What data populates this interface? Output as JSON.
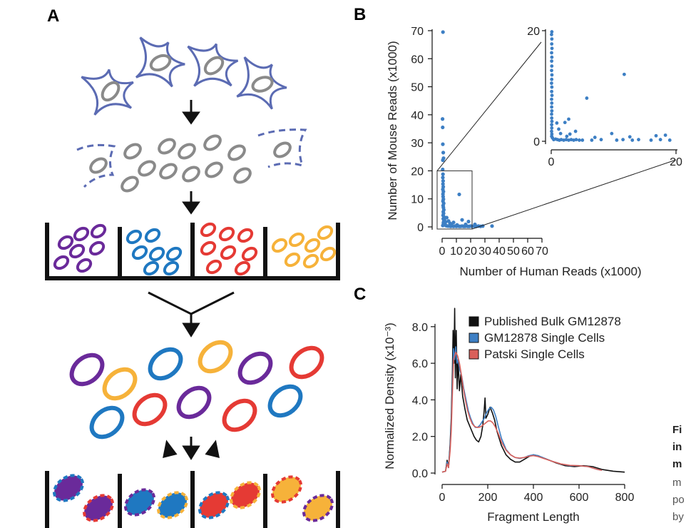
{
  "panels": {
    "a": {
      "label": "A",
      "well_colors": [
        "#6a2a9a",
        "#1f78c1",
        "#e53a34",
        "#f6b23a"
      ]
    },
    "b": {
      "label": "B"
    },
    "c": {
      "label": "C"
    }
  },
  "caption_fragments": [
    "Fi",
    "in",
    "m",
    "m",
    "po",
    "by"
  ],
  "colors": {
    "cell_outline": "#5b6bb3",
    "nucleus": "#8a8a8a",
    "point": "#3d7fc4",
    "bulk": "#111111",
    "gm12878": "#3d7fc4",
    "patski": "#d9605a"
  },
  "chart_data": [
    {
      "type": "scatter",
      "id": "panel-b-main",
      "xlabel": "Number of Human Reads (x1000)",
      "ylabel": "Number of Mouse Reads  (x1000)",
      "xlim": [
        0,
        70
      ],
      "ylim": [
        0,
        70
      ],
      "xticks": [
        0,
        10,
        20,
        30,
        40,
        50,
        60,
        70
      ],
      "yticks": [
        0,
        10,
        20,
        30,
        40,
        50,
        60,
        70
      ],
      "points": [
        [
          0.6,
          69.5
        ],
        [
          0.3,
          38.5
        ],
        [
          0.4,
          35.5
        ],
        [
          0.5,
          29.5
        ],
        [
          0.8,
          26.5
        ],
        [
          1.0,
          24.5
        ],
        [
          0.5,
          23.8
        ],
        [
          0.4,
          20.5
        ],
        [
          0.6,
          18.8
        ],
        [
          0.5,
          17.6
        ],
        [
          0.7,
          16.4
        ],
        [
          0.6,
          15.3
        ],
        [
          0.8,
          14.3
        ],
        [
          0.5,
          13.4
        ],
        [
          0.9,
          12.6
        ],
        [
          0.6,
          11.7
        ],
        [
          0.7,
          10.8
        ],
        [
          0.9,
          9.9
        ],
        [
          0.6,
          9.2
        ],
        [
          1.1,
          8.4
        ],
        [
          0.7,
          7.6
        ],
        [
          0.9,
          6.9
        ],
        [
          1.2,
          6.1
        ],
        [
          0.8,
          5.4
        ],
        [
          1.0,
          4.8
        ],
        [
          0.7,
          4.1
        ],
        [
          1.4,
          3.5
        ],
        [
          0.8,
          2.9
        ],
        [
          1.6,
          2.4
        ],
        [
          1.1,
          1.9
        ],
        [
          0.9,
          1.4
        ],
        [
          2.0,
          1.0
        ],
        [
          1.3,
          0.8
        ],
        [
          2.4,
          0.6
        ],
        [
          0.5,
          0.5
        ],
        [
          3.0,
          0.4
        ],
        [
          4.0,
          0.3
        ],
        [
          5.0,
          0.3
        ],
        [
          6.0,
          0.2
        ],
        [
          7.0,
          0.3
        ],
        [
          8.0,
          0.2
        ],
        [
          9.0,
          0.3
        ],
        [
          10.0,
          0.2
        ],
        [
          11.0,
          0.3
        ],
        [
          12.0,
          0.2
        ],
        [
          13.0,
          0.2
        ],
        [
          14.0,
          0.3
        ],
        [
          15.0,
          0.2
        ],
        [
          16.0,
          0.2
        ],
        [
          17.0,
          0.3
        ],
        [
          18.0,
          0.2
        ],
        [
          19.0,
          0.2
        ],
        [
          20.0,
          0.3
        ],
        [
          21.0,
          0.2
        ],
        [
          22.5,
          0.3
        ],
        [
          24.0,
          0.2
        ],
        [
          25.5,
          0.3
        ],
        [
          27.0,
          0.2
        ],
        [
          28.5,
          0.3
        ],
        [
          35.0,
          0.3
        ],
        [
          3.2,
          3.3
        ],
        [
          5.5,
          1.3
        ],
        [
          8.0,
          1.6
        ],
        [
          12.0,
          11.6
        ],
        [
          14.0,
          2.5
        ],
        [
          16.5,
          0.9
        ],
        [
          18.5,
          1.9
        ],
        [
          23.0,
          0.9
        ],
        [
          2.5,
          1.8
        ],
        [
          6.5,
          0.8
        ],
        [
          10.5,
          0.7
        ],
        [
          4.5,
          2.1
        ]
      ]
    },
    {
      "type": "scatter",
      "id": "panel-b-inset",
      "xlim": [
        0,
        20
      ],
      "ylim": [
        0,
        20
      ],
      "xticks": [
        0,
        20
      ],
      "yticks": [
        0,
        20
      ],
      "points": [
        [
          0.1,
          19.8
        ],
        [
          0.05,
          19.3
        ],
        [
          0.1,
          18.5
        ],
        [
          0.08,
          17.6
        ],
        [
          0.12,
          16.8
        ],
        [
          0.06,
          16.0
        ],
        [
          0.1,
          15.2
        ],
        [
          0.07,
          14.5
        ],
        [
          0.09,
          13.6
        ],
        [
          0.06,
          12.8
        ],
        [
          0.11,
          12.0
        ],
        [
          0.08,
          11.2
        ],
        [
          0.05,
          10.5
        ],
        [
          0.1,
          9.8
        ],
        [
          0.07,
          9.0
        ],
        [
          0.12,
          8.3
        ],
        [
          0.06,
          7.6
        ],
        [
          0.09,
          6.9
        ],
        [
          0.07,
          6.2
        ],
        [
          0.1,
          5.5
        ],
        [
          0.06,
          4.9
        ],
        [
          0.08,
          4.2
        ],
        [
          0.11,
          3.6
        ],
        [
          0.07,
          3.0
        ],
        [
          0.09,
          2.4
        ],
        [
          0.06,
          1.8
        ],
        [
          0.1,
          1.3
        ],
        [
          0.07,
          0.9
        ],
        [
          0.2,
          0.6
        ],
        [
          0.4,
          0.3
        ],
        [
          0.7,
          0.4
        ],
        [
          1.0,
          0.3
        ],
        [
          1.3,
          0.2
        ],
        [
          1.6,
          0.3
        ],
        [
          2.0,
          0.2
        ],
        [
          2.4,
          0.3
        ],
        [
          2.8,
          0.2
        ],
        [
          3.2,
          0.3
        ],
        [
          3.6,
          0.2
        ],
        [
          4.0,
          0.3
        ],
        [
          4.5,
          0.2
        ],
        [
          5.0,
          0.2
        ],
        [
          6.5,
          0.2
        ],
        [
          8.0,
          0.3
        ],
        [
          10.5,
          0.2
        ],
        [
          11.5,
          0.3
        ],
        [
          13.0,
          0.2
        ],
        [
          14.0,
          0.3
        ],
        [
          16.0,
          0.2
        ],
        [
          17.5,
          0.3
        ],
        [
          19.0,
          0.2
        ],
        [
          0.9,
          3.3
        ],
        [
          1.5,
          1.4
        ],
        [
          2.2,
          3.4
        ],
        [
          3.0,
          1.3
        ],
        [
          3.9,
          1.8
        ],
        [
          5.7,
          7.8
        ],
        [
          2.8,
          4.0
        ],
        [
          11.7,
          12.1
        ],
        [
          1.2,
          2.2
        ],
        [
          2.5,
          0.9
        ],
        [
          9.7,
          1.4
        ],
        [
          12.6,
          0.8
        ],
        [
          16.8,
          1.0
        ],
        [
          18.3,
          1.1
        ],
        [
          7.0,
          0.7
        ]
      ]
    },
    {
      "type": "line",
      "id": "panel-c",
      "xlabel": "Fragment Length",
      "ylabel": "Normalized Density (x10⁻³)",
      "xlim": [
        0,
        800
      ],
      "ylim": [
        0,
        8.5
      ],
      "xticks": [
        0,
        200,
        400,
        600,
        800
      ],
      "yticks": [
        "0.0",
        "2.0",
        "4.0",
        "6.0",
        "8.0"
      ],
      "legend_position": "top-right",
      "series": [
        {
          "name": "Published Bulk GM12878",
          "color": "#111111",
          "points": [
            [
              0,
              0.05
            ],
            [
              15,
              0.1
            ],
            [
              22,
              0.7
            ],
            [
              28,
              0.3
            ],
            [
              35,
              1.6
            ],
            [
              40,
              3.0
            ],
            [
              45,
              5.5
            ],
            [
              48,
              7.8
            ],
            [
              52,
              6.0
            ],
            [
              55,
              9.0
            ],
            [
              58,
              5.2
            ],
            [
              62,
              7.8
            ],
            [
              66,
              4.6
            ],
            [
              70,
              6.2
            ],
            [
              76,
              4.5
            ],
            [
              82,
              5.4
            ],
            [
              90,
              4.2
            ],
            [
              100,
              3.5
            ],
            [
              110,
              2.9
            ],
            [
              120,
              2.6
            ],
            [
              130,
              2.3
            ],
            [
              140,
              2.0
            ],
            [
              150,
              1.8
            ],
            [
              160,
              1.7
            ],
            [
              170,
              2.0
            ],
            [
              178,
              2.6
            ],
            [
              184,
              3.4
            ],
            [
              188,
              4.1
            ],
            [
              192,
              3.0
            ],
            [
              200,
              3.2
            ],
            [
              210,
              3.6
            ],
            [
              220,
              3.3
            ],
            [
              230,
              2.9
            ],
            [
              240,
              2.3
            ],
            [
              260,
              1.5
            ],
            [
              280,
              1.0
            ],
            [
              300,
              0.75
            ],
            [
              320,
              0.6
            ],
            [
              340,
              0.6
            ],
            [
              360,
              0.75
            ],
            [
              380,
              0.9
            ],
            [
              400,
              1.0
            ],
            [
              420,
              0.95
            ],
            [
              440,
              0.85
            ],
            [
              460,
              0.75
            ],
            [
              500,
              0.55
            ],
            [
              540,
              0.4
            ],
            [
              580,
              0.35
            ],
            [
              620,
              0.4
            ],
            [
              660,
              0.35
            ],
            [
              700,
              0.2
            ],
            [
              750,
              0.1
            ],
            [
              800,
              0.05
            ]
          ]
        },
        {
          "name": "GM12878 Single Cells",
          "color": "#3d7fc4",
          "points": [
            [
              0,
              0.05
            ],
            [
              15,
              0.1
            ],
            [
              22,
              0.6
            ],
            [
              28,
              0.3
            ],
            [
              35,
              1.4
            ],
            [
              40,
              2.6
            ],
            [
              45,
              4.8
            ],
            [
              50,
              6.8
            ],
            [
              55,
              6.2
            ],
            [
              60,
              6.9
            ],
            [
              65,
              6.0
            ],
            [
              70,
              6.2
            ],
            [
              78,
              5.6
            ],
            [
              86,
              5.3
            ],
            [
              95,
              4.6
            ],
            [
              105,
              4.0
            ],
            [
              115,
              3.4
            ],
            [
              125,
              3.0
            ],
            [
              135,
              2.7
            ],
            [
              145,
              2.5
            ],
            [
              155,
              2.5
            ],
            [
              165,
              2.6
            ],
            [
              175,
              2.8
            ],
            [
              185,
              3.0
            ],
            [
              195,
              3.3
            ],
            [
              205,
              3.5
            ],
            [
              215,
              3.6
            ],
            [
              225,
              3.45
            ],
            [
              235,
              3.1
            ],
            [
              245,
              2.6
            ],
            [
              260,
              1.9
            ],
            [
              280,
              1.3
            ],
            [
              300,
              1.0
            ],
            [
              320,
              0.85
            ],
            [
              340,
              0.8
            ],
            [
              360,
              0.85
            ],
            [
              380,
              0.95
            ],
            [
              400,
              1.0
            ],
            [
              420,
              0.95
            ],
            [
              440,
              0.85
            ],
            [
              480,
              0.65
            ],
            [
              520,
              0.5
            ],
            [
              560,
              0.4
            ],
            [
              600,
              0.4
            ],
            [
              640,
              0.35
            ],
            [
              680,
              0.2
            ],
            [
              700,
              0.15
            ]
          ]
        },
        {
          "name": "Patski Single Cells",
          "color": "#d9605a",
          "points": [
            [
              0,
              0.05
            ],
            [
              15,
              0.1
            ],
            [
              22,
              0.5
            ],
            [
              28,
              0.3
            ],
            [
              35,
              1.2
            ],
            [
              40,
              2.3
            ],
            [
              45,
              4.3
            ],
            [
              50,
              6.2
            ],
            [
              55,
              6.4
            ],
            [
              60,
              6.6
            ],
            [
              68,
              6.4
            ],
            [
              76,
              6.0
            ],
            [
              84,
              5.4
            ],
            [
              92,
              4.7
            ],
            [
              102,
              4.0
            ],
            [
              112,
              3.4
            ],
            [
              122,
              3.0
            ],
            [
              132,
              2.7
            ],
            [
              142,
              2.55
            ],
            [
              152,
              2.5
            ],
            [
              162,
              2.5
            ],
            [
              172,
              2.55
            ],
            [
              182,
              2.65
            ],
            [
              192,
              2.75
            ],
            [
              202,
              2.85
            ],
            [
              212,
              2.85
            ],
            [
              222,
              2.75
            ],
            [
              232,
              2.55
            ],
            [
              245,
              2.2
            ],
            [
              260,
              1.7
            ],
            [
              280,
              1.25
            ],
            [
              300,
              1.0
            ],
            [
              320,
              0.85
            ],
            [
              340,
              0.82
            ],
            [
              360,
              0.85
            ],
            [
              380,
              0.92
            ],
            [
              400,
              0.95
            ],
            [
              420,
              0.9
            ],
            [
              440,
              0.82
            ],
            [
              480,
              0.65
            ],
            [
              520,
              0.5
            ],
            [
              560,
              0.42
            ],
            [
              600,
              0.4
            ],
            [
              640,
              0.35
            ],
            [
              680,
              0.2
            ],
            [
              700,
              0.15
            ]
          ]
        }
      ]
    }
  ]
}
